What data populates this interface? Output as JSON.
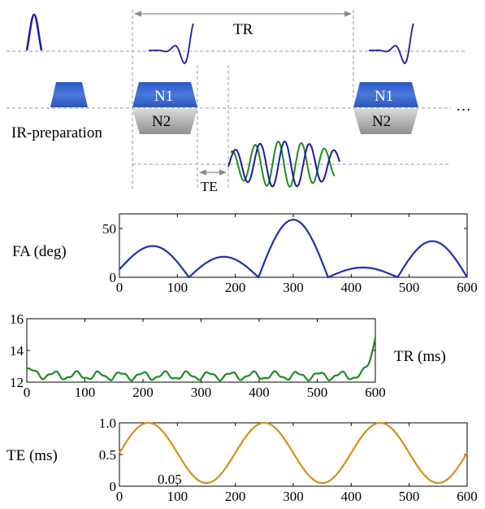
{
  "sequence": {
    "tr_label": "TR",
    "te_label": "TE",
    "ir_label": "IR-preparation",
    "block1": {
      "top": "N1",
      "bottom": "N2"
    },
    "block2": {
      "top": "N1",
      "bottom": "N2"
    },
    "continuation": "…",
    "colors": {
      "rf": "#1a1aa8",
      "gradient_top": "#3a63c9",
      "gradient_bottom": "#a8a8a8",
      "echo_green": "#1f8a1f"
    }
  },
  "chart_data": [
    {
      "type": "line",
      "ylabel": "FA (deg)",
      "xlim": [
        0,
        600
      ],
      "ylim": [
        0,
        65
      ],
      "xticks": [
        0,
        100,
        200,
        300,
        400,
        500,
        600
      ],
      "yticks": [
        0,
        50
      ],
      "color": "#1f2fb0",
      "arches": [
        {
          "x0": 0,
          "x1": 120,
          "peak_x": 58,
          "peak": 32,
          "y0": 8
        },
        {
          "x0": 120,
          "x1": 240,
          "peak_x": 180,
          "peak": 21
        },
        {
          "x0": 240,
          "x1": 360,
          "peak_x": 300,
          "peak": 59
        },
        {
          "x0": 360,
          "x1": 480,
          "peak_x": 420,
          "peak": 10
        },
        {
          "x0": 480,
          "x1": 600,
          "peak_x": 540,
          "peak": 37
        }
      ]
    },
    {
      "type": "line",
      "ylabel": "TR (ms)",
      "xlim": [
        0,
        600
      ],
      "ylim": [
        12,
        16
      ],
      "xticks": [
        0,
        100,
        200,
        300,
        400,
        500,
        600
      ],
      "yticks": [
        12,
        14,
        16
      ],
      "color": "#1f8a1f",
      "base": 12.4,
      "ripple_amplitude": 0.22,
      "ripple_period": 38,
      "start": 12.75,
      "end": 15.0
    },
    {
      "type": "line",
      "ylabel": "TE (ms)",
      "xlim": [
        0,
        600
      ],
      "ylim": [
        0,
        1.0
      ],
      "xticks": [
        0,
        100,
        200,
        300,
        400,
        500,
        600
      ],
      "yticks": [
        "0",
        "0.5",
        "1.0"
      ],
      "yticks_values": [
        0,
        0.5,
        1.0
      ],
      "annotation": "0.05",
      "color": "#d4901c",
      "min": 0.05,
      "max": 1.0,
      "period": 200,
      "peak_x": 50
    }
  ]
}
